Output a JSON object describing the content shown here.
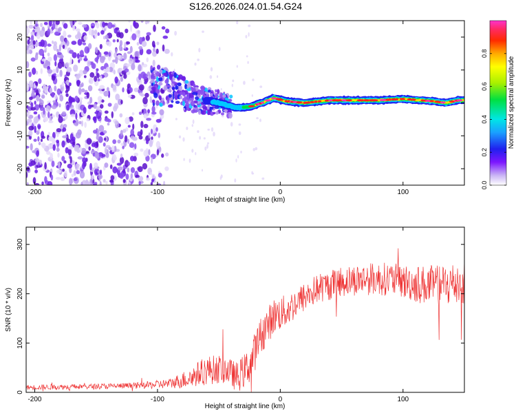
{
  "title": "S126.2026.024.01.54.G24",
  "colors": {
    "snr_line": "#ee3333",
    "axis": "#000000",
    "background": "#ffffff"
  },
  "chart_data": [
    {
      "type": "heatmap",
      "name": "spectrogram",
      "xlabel": "Height of straight line (km)",
      "ylabel": "Frequency (Hz)",
      "xlim": [
        -207,
        150
      ],
      "ylim": [
        -25,
        25
      ],
      "xticks": [
        -200,
        -100,
        0,
        100
      ],
      "yticks": [
        -20,
        -10,
        0,
        10,
        20
      ],
      "colorbar": {
        "label": "Normalized spectral amplitude",
        "range": [
          0,
          1
        ],
        "ticks": [
          "0.0",
          "0.2",
          "0.4",
          "0.6",
          "0.8"
        ],
        "tick_values": [
          0.0,
          0.2,
          0.4,
          0.6,
          0.8
        ]
      },
      "ridge": {
        "description_points": [
          {
            "x": -95,
            "f": 5
          },
          {
            "x": -70,
            "f": 1.5
          },
          {
            "x": -50,
            "f": 0
          },
          {
            "x": -35,
            "f": -1.5
          },
          {
            "x": -25,
            "f": -1.2
          },
          {
            "x": -15,
            "f": 0
          },
          {
            "x": -5,
            "f": 1.5
          },
          {
            "x": 5,
            "f": 0.5
          },
          {
            "x": 20,
            "f": 0
          },
          {
            "x": 40,
            "f": 0.8
          },
          {
            "x": 80,
            "f": 0.8
          },
          {
            "x": 100,
            "f": 1.2
          },
          {
            "x": 125,
            "f": 0.5
          },
          {
            "x": 135,
            "f": 0
          },
          {
            "x": 145,
            "f": 0.8
          }
        ]
      }
    },
    {
      "type": "line",
      "name": "snr",
      "xlabel": "Height of straight line (km)",
      "ylabel": "SNR (10 * v/v)",
      "xlim": [
        -207,
        150
      ],
      "ylim": [
        0,
        335
      ],
      "xticks": [
        -200,
        -100,
        0,
        100
      ],
      "yticks": [
        0,
        100,
        200,
        300
      ],
      "trend": [
        {
          "x": -207,
          "y": 10
        },
        {
          "x": -150,
          "y": 12
        },
        {
          "x": -110,
          "y": 14
        },
        {
          "x": -90,
          "y": 18
        },
        {
          "x": -75,
          "y": 28
        },
        {
          "x": -60,
          "y": 45
        },
        {
          "x": -45,
          "y": 48
        },
        {
          "x": -35,
          "y": 30
        },
        {
          "x": -25,
          "y": 55
        },
        {
          "x": -15,
          "y": 120
        },
        {
          "x": -5,
          "y": 155
        },
        {
          "x": 5,
          "y": 165
        },
        {
          "x": 15,
          "y": 185
        },
        {
          "x": 30,
          "y": 210
        },
        {
          "x": 50,
          "y": 225
        },
        {
          "x": 70,
          "y": 230
        },
        {
          "x": 90,
          "y": 230
        },
        {
          "x": 110,
          "y": 220
        },
        {
          "x": 130,
          "y": 215
        },
        {
          "x": 150,
          "y": 225
        }
      ],
      "noise": [
        {
          "x": -207,
          "amp": 5
        },
        {
          "x": -120,
          "amp": 6
        },
        {
          "x": -90,
          "amp": 10
        },
        {
          "x": -60,
          "amp": 30
        },
        {
          "x": -40,
          "amp": 28
        },
        {
          "x": -20,
          "amp": 40
        },
        {
          "x": 0,
          "amp": 35
        },
        {
          "x": 20,
          "amp": 30
        },
        {
          "x": 60,
          "amp": 32
        },
        {
          "x": 100,
          "amp": 35
        },
        {
          "x": 150,
          "amp": 50
        }
      ]
    }
  ]
}
